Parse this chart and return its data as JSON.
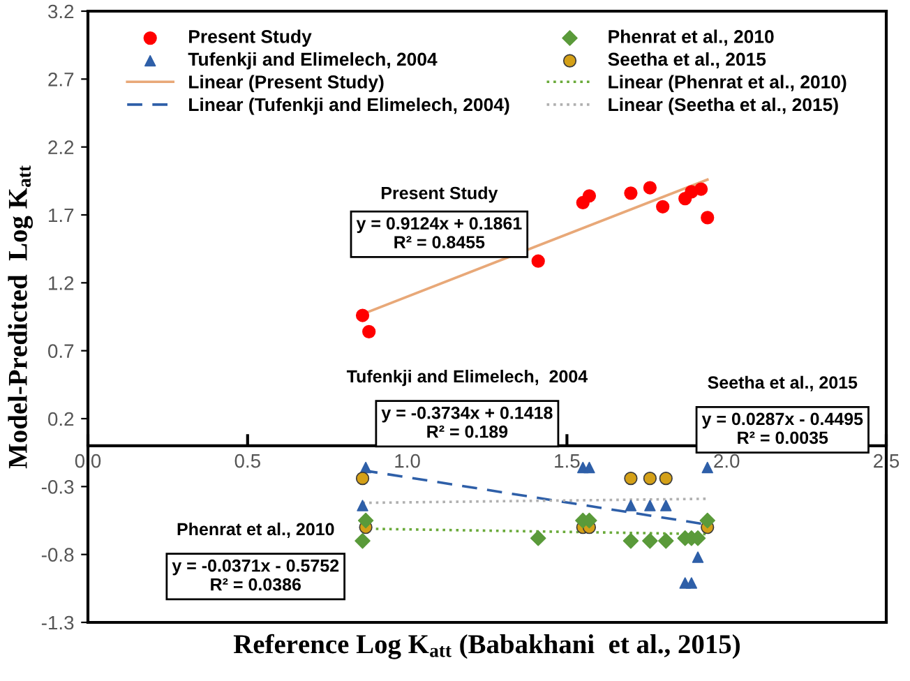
{
  "chart_data": {
    "type": "scatter",
    "xlabel": "Reference Log K$_{att}$ (Babakhani  et al., 2015)",
    "ylabel": "Model-Predicted  Log K$_{att}$",
    "xlim": [
      0,
      2.5
    ],
    "ylim": [
      -1.3,
      3.2
    ],
    "xticks": [
      {
        "value": 0,
        "label": "0.0"
      },
      0.5,
      {
        "value": 1,
        "label": "1.0"
      },
      1.5,
      {
        "value": 2,
        "label": "2.0"
      },
      2.5
    ],
    "yticks": [
      -1.3,
      -0.8,
      -0.3,
      0.2,
      0.7,
      1.2,
      1.7,
      2.2,
      2.7,
      3.2
    ],
    "grid": false,
    "legend": "top",
    "series": [
      {
        "name": "Present Study",
        "marker": "circle",
        "color": "#ff0000",
        "x": [
          0.86,
          0.88,
          1.41,
          1.55,
          1.57,
          1.7,
          1.76,
          1.8,
          1.87,
          1.89,
          1.92,
          1.94
        ],
        "values": [
          0.96,
          0.84,
          1.36,
          1.79,
          1.84,
          1.86,
          1.9,
          1.76,
          1.82,
          1.87,
          1.89,
          1.68
        ]
      },
      {
        "name": "Tufenkji and Elimelech, 2004",
        "marker": "triangle",
        "color": "#2e5fa8",
        "x": [
          0.87,
          0.86,
          1.55,
          1.57,
          1.7,
          1.76,
          1.81,
          1.94,
          1.91,
          1.87,
          1.89
        ],
        "values": [
          -0.16,
          -0.44,
          -0.16,
          -0.16,
          -0.44,
          -0.44,
          -0.44,
          -0.16,
          -0.82,
          -1.01,
          -1.01
        ]
      },
      {
        "name": "Phenrat et al., 2010",
        "marker": "diamond",
        "color": "#5a9a3a",
        "x": [
          0.87,
          0.86,
          1.55,
          1.57,
          1.41,
          1.7,
          1.76,
          1.81,
          1.87,
          1.89,
          1.91,
          1.94
        ],
        "values": [
          -0.55,
          -0.7,
          -0.55,
          -0.55,
          -0.68,
          -0.7,
          -0.7,
          -0.7,
          -0.68,
          -0.68,
          -0.68,
          -0.55
        ]
      },
      {
        "name": "Seetha et al., 2015",
        "marker": "circle",
        "color": "#d4a017",
        "x": [
          0.86,
          0.87,
          1.55,
          1.57,
          1.7,
          1.76,
          1.81,
          1.94
        ],
        "values": [
          -0.24,
          -0.6,
          -0.6,
          -0.6,
          -0.24,
          -0.24,
          -0.24,
          -0.6
        ]
      },
      {
        "name": "Linear (Present Study)",
        "type": "line",
        "line_style": "solid",
        "color": "#e8a878",
        "x": [
          0.86,
          1.94
        ],
        "values": [
          0.97,
          1.96
        ]
      },
      {
        "name": "Linear (Tufenkji and Elimelech, 2004)",
        "type": "line",
        "line_style": "dashed",
        "color": "#2e5fa8",
        "x": [
          0.86,
          1.94
        ],
        "values": [
          -0.18,
          -0.58
        ]
      },
      {
        "name": "Linear (Phenrat et al., 2010)",
        "type": "line",
        "line_style": "dotted",
        "color": "#6aaa3a",
        "x": [
          0.86,
          1.94
        ],
        "values": [
          -0.61,
          -0.65
        ]
      },
      {
        "name": "Linear (Seetha et al., 2015)",
        "type": "line",
        "line_style": "dotted",
        "color": "#b0b0b0",
        "x": [
          0.86,
          1.94
        ],
        "values": [
          -0.42,
          -0.39
        ]
      }
    ],
    "annotations": [
      "Present Study",
      "y = 0.9124x + 0.1861\nR² = 0.8455",
      "Tufenkji and Elimelech,  2004",
      "y = -0.3734x + 0.1418\nR² = 0.189",
      "Seetha et al., 2015",
      "y = 0.0287x - 0.4495\nR² = 0.0035",
      "Phenrat et al., 2010",
      "y = -0.0371x - 0.5752\nR² = 0.0386"
    ]
  }
}
